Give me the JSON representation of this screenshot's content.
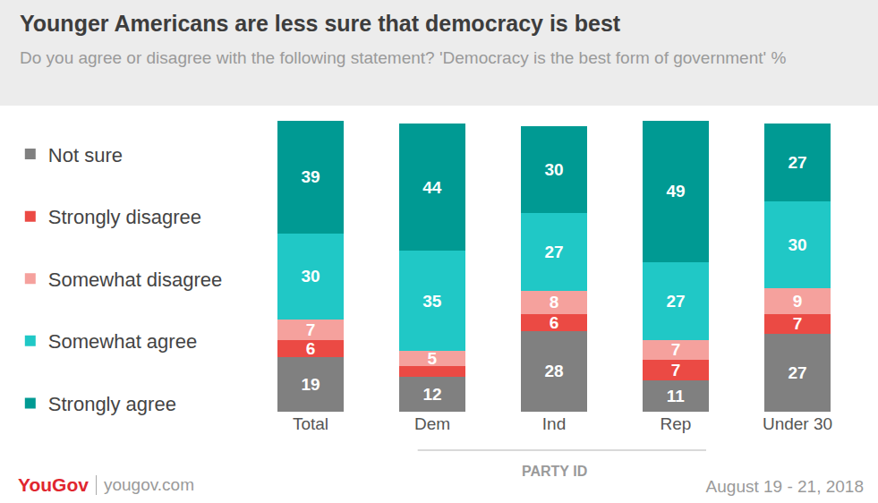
{
  "chart_data": {
    "type": "bar",
    "title": "Younger Americans are less sure that democracy is best",
    "subtitle": "Do you agree or disagree with the following statement? 'Democracy is the best form of government' %",
    "categories": [
      "Total",
      "Dem",
      "Ind",
      "Rep",
      "Under 30"
    ],
    "series": [
      {
        "name": "Not sure",
        "color": "#808080",
        "values": [
          19,
          12,
          28,
          11,
          27
        ]
      },
      {
        "name": "Strongly disagree",
        "color": "#eb4a44",
        "values": [
          6,
          4,
          6,
          7,
          7
        ],
        "value_labels": [
          "6",
          null,
          "6",
          "7",
          "7"
        ]
      },
      {
        "name": "Somewhat disagree",
        "color": "#f5a19d",
        "values": [
          7,
          5,
          8,
          7,
          9
        ]
      },
      {
        "name": "Somewhat agree",
        "color": "#20c8c6",
        "values": [
          30,
          35,
          27,
          27,
          30
        ]
      },
      {
        "name": "Strongly agree",
        "color": "#009a93",
        "values": [
          39,
          44,
          30,
          49,
          27
        ]
      }
    ],
    "ylim": [
      0,
      101
    ],
    "stacked": true,
    "data_labels": true,
    "grid": false,
    "legend": "left",
    "tick_labels": "x",
    "annotations": {
      "group": "PARTY ID",
      "brand": "YouGov",
      "site": "yougov.com",
      "date": "August 19 - 21, 2018"
    }
  }
}
